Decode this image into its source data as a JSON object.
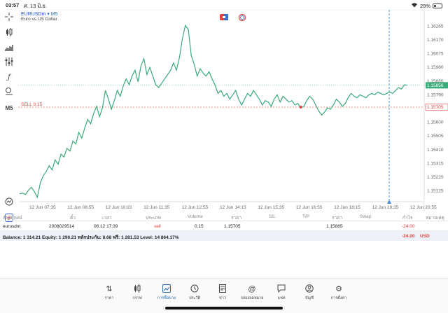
{
  "status": {
    "time": "03:57",
    "date": "ศ. 13 มิ.ย.",
    "battery": "29%",
    "battery_level": 0.29
  },
  "chart": {
    "symbol": "EURUSDm",
    "timeframe": "M5",
    "description": "Euro vs US Dollar",
    "sell_label": "SELL 0.15",
    "colors": {
      "line": "#3aaa7a",
      "bid": "#3aaa7a",
      "sell": "#e53e3e",
      "cursor": "#4a90d9"
    }
  },
  "chart_data": {
    "type": "line",
    "y_ticks": [
      "1.16265",
      "1.16170",
      "1.16075",
      "1.15980",
      "1.15885",
      "1.15790",
      "1.15695",
      "1.15600",
      "1.15505",
      "1.15410",
      "1.15315",
      "1.15220",
      "1.15125"
    ],
    "x_ticks": [
      "12 Jun 07:35",
      "12 Jun 08:55",
      "12 Jun 10:15",
      "12 Jun 11:35",
      "12 Jun 12:55",
      "12 Jun 14:15",
      "12 Jun 15:35",
      "12 Jun 16:55",
      "12 Jun 18:15",
      "12 Jun 19:35",
      "12 Jun 20:55"
    ],
    "current_price": "1.15856",
    "current_value": 1.15856,
    "sell_level": "1.15705",
    "sell_value": 1.15705,
    "ylim": [
      1.1507,
      1.1633
    ],
    "values": [
      1.15105,
      1.1511,
      1.151,
      1.1513,
      1.1515,
      1.1512,
      1.1508,
      1.1518,
      1.1523,
      1.1526,
      1.153,
      1.1527,
      1.1534,
      1.1531,
      1.1538,
      1.1536,
      1.1542,
      1.154,
      1.1547,
      1.1545,
      1.1553,
      1.1549,
      1.1556,
      1.1562,
      1.1559,
      1.1566,
      1.1571,
      1.1564,
      1.157,
      1.1582,
      1.1576,
      1.1569,
      1.1575,
      1.1582,
      1.1578,
      1.1585,
      1.159,
      1.1586,
      1.1592,
      1.1596,
      1.1588,
      1.1599,
      1.1604,
      1.1593,
      1.1598,
      1.1592,
      1.1586,
      1.1584,
      1.1587,
      1.159,
      1.1593,
      1.1596,
      1.1601,
      1.1596,
      1.1605,
      1.1618,
      1.1627,
      1.1624,
      1.1606,
      1.16,
      1.1592,
      1.1597,
      1.1594,
      1.1592,
      1.1595,
      1.159,
      1.1586,
      1.158,
      1.1582,
      1.1578,
      1.158,
      1.1576,
      1.1579,
      1.1582,
      1.1576,
      1.1572,
      1.1576,
      1.158,
      1.1578,
      1.1582,
      1.1579,
      1.1576,
      1.1572,
      1.1575,
      1.1574,
      1.1571,
      1.1576,
      1.1579,
      1.1574,
      1.1578,
      1.1576,
      1.1574,
      1.1575,
      1.1572,
      1.1573,
      1.157,
      1.1571,
      1.1575,
      1.1578,
      1.1576,
      1.1572,
      1.1568,
      1.1565,
      1.1567,
      1.157,
      1.1569,
      1.1572,
      1.1576,
      1.1574,
      1.1571,
      1.1573,
      1.1577,
      1.158,
      1.1578,
      1.1577,
      1.1579,
      1.1578,
      1.1577,
      1.1579,
      1.158,
      1.1579,
      1.1581,
      1.158,
      1.1579,
      1.158,
      1.1581,
      1.158,
      1.1582,
      1.1584,
      1.1583,
      1.1586,
      1.15856
    ]
  },
  "positions": {
    "headers": {
      "symbol": "สัญลักษณ์",
      "ticket": "ตั๋ว",
      "time": "เวลา",
      "type": "ประเภท",
      "volume": "Volume",
      "price": "ราคา",
      "sl": "S/L",
      "tp": "T/P",
      "cur_price": "ราคา",
      "swap": "Swap",
      "profit": "กำไร",
      "note": "หมายเหตุ"
    },
    "row": {
      "symbol": "eurusdm",
      "ticket": "2008029514",
      "time": "06.12 17:39",
      "type": "sell",
      "volume": "0.15",
      "price": "1.15705",
      "cur_price": "1.15865",
      "profit": "-24.00"
    },
    "balance_text": "Balance: 1 314.21 Equity: 1 290.21 หลักประกัน: 8.68 ฟรี: 1 281.53 Level: 14 864.17%",
    "balance_profit": "-24.00",
    "currency": "USD"
  },
  "nav": {
    "items": [
      {
        "icon": "arrows-updown-icon",
        "label": "ราคา"
      },
      {
        "icon": "candles-icon",
        "label": "กราฟ"
      },
      {
        "icon": "trade-icon",
        "label": "การซื้อขาย"
      },
      {
        "icon": "history-icon",
        "label": "ประวัติ"
      },
      {
        "icon": "news-icon",
        "label": "ข่าว"
      },
      {
        "icon": "at-icon",
        "label": "กล่องจดหมาย"
      },
      {
        "icon": "chat-icon",
        "label": "แชท"
      },
      {
        "icon": "account-icon",
        "label": "บัญชี"
      },
      {
        "icon": "gear-icon",
        "label": "การตั้งค่า"
      }
    ]
  }
}
